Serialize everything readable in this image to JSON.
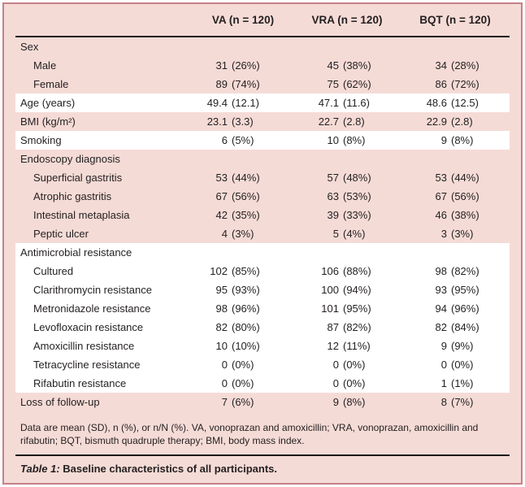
{
  "colors": {
    "page_background": "#f5dbd6",
    "band_pink": "#f5dbd6",
    "band_white": "#ffffff",
    "frame_border": "#c5808a",
    "rule": "#1a1a1a",
    "text": "#231f20"
  },
  "table": {
    "column_headers": [
      "VA (n = 120)",
      "VRA (n = 120)",
      "BQT (n = 120)"
    ],
    "rows": [
      {
        "label": "Sex",
        "indent": 0,
        "band": "pink",
        "values": [
          "",
          "",
          ""
        ]
      },
      {
        "label": "Male",
        "indent": 1,
        "band": "pink",
        "values": [
          "31 (26%)",
          "45 (38%)",
          "34 (28%)"
        ]
      },
      {
        "label": "Female",
        "indent": 1,
        "band": "pink",
        "values": [
          "89 (74%)",
          "75 (62%)",
          "86 (72%)"
        ]
      },
      {
        "label": "Age (years)",
        "indent": 0,
        "band": "white",
        "values": [
          "49.4 (12.1)",
          "47.1 (11.6)",
          "48.6 (12.5)"
        ]
      },
      {
        "label": "BMI (kg/m²)",
        "indent": 0,
        "band": "pink",
        "values": [
          "23.1 (3.3)",
          "22.7 (2.8)",
          "22.9 (2.8)"
        ]
      },
      {
        "label": "Smoking",
        "indent": 0,
        "band": "white",
        "values": [
          "6 (5%)",
          "10 (8%)",
          "9 (8%)"
        ]
      },
      {
        "label": "Endoscopy diagnosis",
        "indent": 0,
        "band": "pink",
        "values": [
          "",
          "",
          ""
        ]
      },
      {
        "label": "Superficial gastritis",
        "indent": 1,
        "band": "pink",
        "values": [
          "53 (44%)",
          "57 (48%)",
          "53 (44%)"
        ]
      },
      {
        "label": "Atrophic gastritis",
        "indent": 1,
        "band": "pink",
        "values": [
          "67 (56%)",
          "63 (53%)",
          "67 (56%)"
        ]
      },
      {
        "label": "Intestinal metaplasia",
        "indent": 1,
        "band": "pink",
        "values": [
          "42 (35%)",
          "39 (33%)",
          "46 (38%)"
        ]
      },
      {
        "label": "Peptic ulcer",
        "indent": 1,
        "band": "pink",
        "values": [
          "4 (3%)",
          "5 (4%)",
          "3 (3%)"
        ]
      },
      {
        "label": "Antimicrobial resistance",
        "indent": 0,
        "band": "white",
        "values": [
          "",
          "",
          ""
        ]
      },
      {
        "label": "Cultured",
        "indent": 1,
        "band": "white",
        "values": [
          "102 (85%)",
          "106 (88%)",
          "98 (82%)"
        ]
      },
      {
        "label": "Clarithromycin resistance",
        "indent": 1,
        "band": "white",
        "values": [
          "95 (93%)",
          "100 (94%)",
          "93 (95%)"
        ]
      },
      {
        "label": "Metronidazole resistance",
        "indent": 1,
        "band": "white",
        "values": [
          "98 (96%)",
          "101 (95%)",
          "94 (96%)"
        ]
      },
      {
        "label": "Levofloxacin resistance",
        "indent": 1,
        "band": "white",
        "values": [
          "82 (80%)",
          "87 (82%)",
          "82 (84%)"
        ]
      },
      {
        "label": "Amoxicillin resistance",
        "indent": 1,
        "band": "white",
        "values": [
          "10 (10%)",
          "12 (11%)",
          "9 (9%)"
        ]
      },
      {
        "label": "Tetracycline resistance",
        "indent": 1,
        "band": "white",
        "values": [
          "0 (0%)",
          "0 (0%)",
          "0 (0%)"
        ]
      },
      {
        "label": "Rifabutin resistance",
        "indent": 1,
        "band": "white",
        "values": [
          "0 (0%)",
          "0 (0%)",
          "1 (1%)"
        ]
      },
      {
        "label": "Loss of follow-up",
        "indent": 0,
        "band": "pink",
        "values": [
          "7 (6%)",
          "9 (8%)",
          "8 (7%)"
        ]
      }
    ],
    "footnote": "Data are mean (SD), n (%), or n/N (%). VA, vonoprazan and amoxicillin; VRA, vonoprazan, amoxicillin and rifabutin; BQT, bismuth quadruple therapy; BMI, body mass index.",
    "caption_label": "Table 1:",
    "caption_text": "Baseline characteristics of all participants."
  }
}
